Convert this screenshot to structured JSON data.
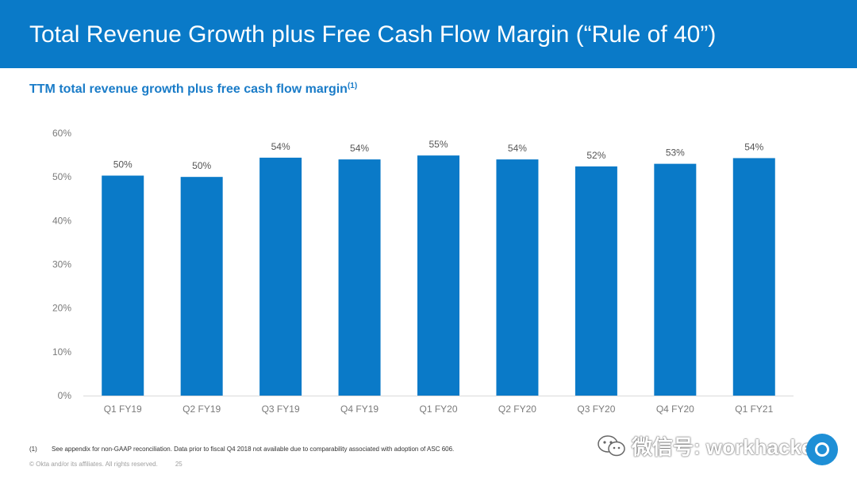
{
  "slide": {
    "title": "Total Revenue Growth plus Free Cash Flow Margin (“Rule of 40”)",
    "subtitle": "TTM total revenue growth plus free cash flow margin",
    "subtitle_note": "(1)",
    "footnote_number": "(1)",
    "footnote_text": "See appendix for non-GAAP reconciliation. Data prior to fiscal Q4 2018 not available due to comparability associated with adoption of ASC 606.",
    "copyright": "© Okta and/or its affiliates. All rights reserved.",
    "page_number": "25",
    "watermark": "微信号: workhacker"
  },
  "colors": {
    "title_bar": "#0a7ac8",
    "bar": "#0a7ac8",
    "axis_text": "#7a7a7a",
    "label_text": "#555555"
  },
  "chart_data": {
    "type": "bar",
    "title": "TTM total revenue growth plus free cash flow margin",
    "categories": [
      "Q1 FY19",
      "Q2 FY19",
      "Q3 FY19",
      "Q4 FY19",
      "Q1 FY20",
      "Q2 FY20",
      "Q3 FY20",
      "Q4 FY20",
      "Q1 FY21"
    ],
    "values": [
      50.3,
      50.0,
      54.4,
      54.0,
      54.9,
      54.0,
      52.4,
      53.0,
      54.3
    ],
    "data_labels": [
      "50%",
      "50%",
      "54%",
      "54%",
      "55%",
      "54%",
      "52%",
      "53%",
      "54%"
    ],
    "ylim": [
      0,
      60
    ],
    "yticks": [
      0,
      10,
      20,
      30,
      40,
      50,
      60
    ],
    "ytick_labels": [
      "0%",
      "10%",
      "20%",
      "30%",
      "40%",
      "50%",
      "60%"
    ],
    "xlabel": "",
    "ylabel": "",
    "grid": false,
    "legend": "none"
  }
}
